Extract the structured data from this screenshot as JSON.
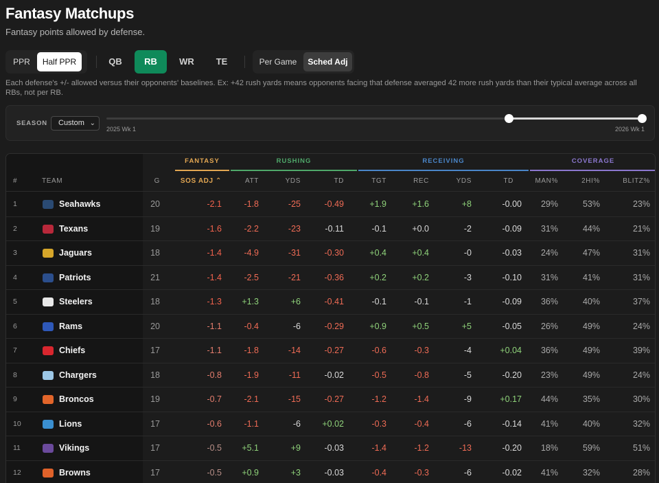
{
  "page": {
    "title": "Fantasy Matchups",
    "subtitle": "Fantasy points allowed by defense."
  },
  "scoring": {
    "options": [
      "PPR",
      "Half PPR"
    ],
    "selected": "Half PPR"
  },
  "positions": {
    "options": [
      "QB",
      "RB",
      "WR",
      "TE"
    ],
    "selected": "RB"
  },
  "mode": {
    "options": [
      "Per Game",
      "Sched Adj"
    ],
    "selected": "Sched Adj"
  },
  "note": "Each defense's +/- allowed versus their opponents' baselines. Ex: +42 rush yards means opponents facing that defense averaged 42 more rush yards than their typical average across all RBs, not per RB.",
  "season": {
    "label": "SEASON",
    "select_value": "Custom",
    "range_start_label": "2025 Wk 1",
    "range_end_label": "2026 Wk 1",
    "slider_start_fraction": 0.75,
    "slider_end_fraction": 1.0
  },
  "table": {
    "groups": [
      {
        "label": "FANTASY",
        "color": "#e2a652"
      },
      {
        "label": "RUSHING",
        "color": "#4fa86a"
      },
      {
        "label": "RECEIVING",
        "color": "#4a86c9"
      },
      {
        "label": "COVERAGE",
        "color": "#8b77cf"
      }
    ],
    "headers": [
      "#",
      "TEAM",
      "G",
      "SOS ADJ ⌃",
      "ATT",
      "YDS",
      "TD",
      "TGT",
      "REC",
      "YDS",
      "TD",
      "MAN%",
      "2HI%",
      "BLITZ%"
    ],
    "sorted_column": "SOS ADJ",
    "rows": [
      {
        "rank": "1",
        "team": "Seahawks",
        "logo_color": "#2a4a73",
        "g": "20",
        "sos": "-2.1",
        "att": "-1.8",
        "ryds": "-25",
        "rtd": "-0.49",
        "tgt": "+1.9",
        "rec": "+1.6",
        "cyds": "+8",
        "ctd": "-0.00",
        "man": "29%",
        "twohi": "53%",
        "blitz": "23%"
      },
      {
        "rank": "2",
        "team": "Texans",
        "logo_color": "#b8283a",
        "g": "19",
        "sos": "-1.6",
        "att": "-2.2",
        "ryds": "-23",
        "rtd": "-0.11",
        "tgt": "-0.1",
        "rec": "+0.0",
        "cyds": "-2",
        "ctd": "-0.09",
        "man": "31%",
        "twohi": "44%",
        "blitz": "21%"
      },
      {
        "rank": "3",
        "team": "Jaguars",
        "logo_color": "#d6a62a",
        "g": "18",
        "sos": "-1.4",
        "att": "-4.9",
        "ryds": "-31",
        "rtd": "-0.30",
        "tgt": "+0.4",
        "rec": "+0.4",
        "cyds": "-0",
        "ctd": "-0.03",
        "man": "24%",
        "twohi": "47%",
        "blitz": "31%"
      },
      {
        "rank": "4",
        "team": "Patriots",
        "logo_color": "#2b4e8c",
        "g": "21",
        "sos": "-1.4",
        "att": "-2.5",
        "ryds": "-21",
        "rtd": "-0.36",
        "tgt": "+0.2",
        "rec": "+0.2",
        "cyds": "-3",
        "ctd": "-0.10",
        "man": "31%",
        "twohi": "41%",
        "blitz": "31%"
      },
      {
        "rank": "5",
        "team": "Steelers",
        "logo_color": "#e8e8e8",
        "g": "18",
        "sos": "-1.3",
        "att": "+1.3",
        "ryds": "+6",
        "rtd": "-0.41",
        "tgt": "-0.1",
        "rec": "-0.1",
        "cyds": "-1",
        "ctd": "-0.09",
        "man": "36%",
        "twohi": "40%",
        "blitz": "37%"
      },
      {
        "rank": "6",
        "team": "Rams",
        "logo_color": "#2e58b8",
        "g": "20",
        "sos": "-1.1",
        "att": "-0.4",
        "ryds": "-6",
        "rtd": "-0.29",
        "tgt": "+0.9",
        "rec": "+0.5",
        "cyds": "+5",
        "ctd": "-0.05",
        "man": "26%",
        "twohi": "49%",
        "blitz": "24%"
      },
      {
        "rank": "7",
        "team": "Chiefs",
        "logo_color": "#d8262e",
        "g": "17",
        "sos": "-1.1",
        "att": "-1.8",
        "ryds": "-14",
        "rtd": "-0.27",
        "tgt": "-0.6",
        "rec": "-0.3",
        "cyds": "-4",
        "ctd": "+0.04",
        "man": "36%",
        "twohi": "49%",
        "blitz": "39%"
      },
      {
        "rank": "8",
        "team": "Chargers",
        "logo_color": "#9cc7e6",
        "g": "18",
        "sos": "-0.8",
        "att": "-1.9",
        "ryds": "-11",
        "rtd": "-0.02",
        "tgt": "-0.5",
        "rec": "-0.8",
        "cyds": "-5",
        "ctd": "-0.20",
        "man": "23%",
        "twohi": "49%",
        "blitz": "24%"
      },
      {
        "rank": "9",
        "team": "Broncos",
        "logo_color": "#e2652a",
        "g": "19",
        "sos": "-0.7",
        "att": "-2.1",
        "ryds": "-15",
        "rtd": "-0.27",
        "tgt": "-1.2",
        "rec": "-1.4",
        "cyds": "-9",
        "ctd": "+0.17",
        "man": "44%",
        "twohi": "35%",
        "blitz": "30%"
      },
      {
        "rank": "10",
        "team": "Lions",
        "logo_color": "#3a8fd0",
        "g": "17",
        "sos": "-0.6",
        "att": "-1.1",
        "ryds": "-6",
        "rtd": "+0.02",
        "tgt": "-0.3",
        "rec": "-0.4",
        "cyds": "-6",
        "ctd": "-0.14",
        "man": "41%",
        "twohi": "40%",
        "blitz": "32%"
      },
      {
        "rank": "11",
        "team": "Vikings",
        "logo_color": "#6b4a9c",
        "g": "17",
        "sos": "-0.5",
        "att": "+5.1",
        "ryds": "+9",
        "rtd": "-0.03",
        "tgt": "-1.4",
        "rec": "-1.2",
        "cyds": "-13",
        "ctd": "-0.20",
        "man": "18%",
        "twohi": "59%",
        "blitz": "51%"
      },
      {
        "rank": "12",
        "team": "Browns",
        "logo_color": "#e0622a",
        "g": "17",
        "sos": "-0.5",
        "att": "+0.9",
        "ryds": "+3",
        "rtd": "-0.03",
        "tgt": "-0.4",
        "rec": "-0.3",
        "cyds": "-6",
        "ctd": "-0.02",
        "man": "41%",
        "twohi": "32%",
        "blitz": "28%"
      }
    ]
  }
}
